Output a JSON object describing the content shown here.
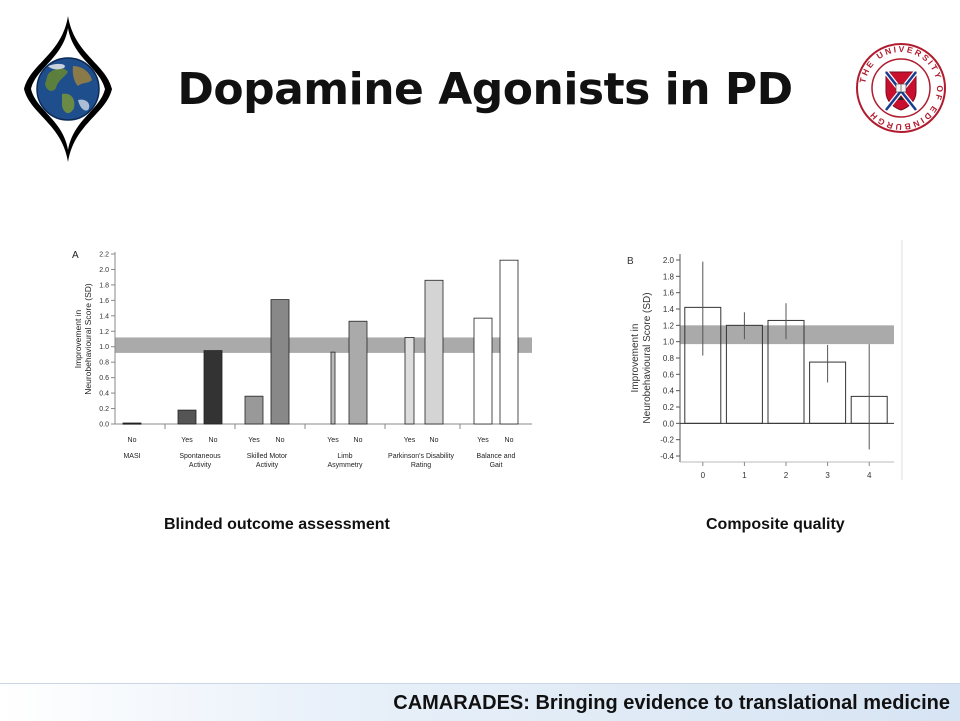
{
  "slide": {
    "title": "Dopamine Agonists in PD",
    "footer": "CAMARADES: Bringing evidence to translational medicine",
    "logo_right_text": "THE UNIVERSITY OF EDINBURGH"
  },
  "chart_data": [
    {
      "type": "bar",
      "panel_label": "A",
      "caption": "Blinded outcome assessment",
      "ylabel_lines": [
        "Improvement in",
        "Neurobehavioural Score (SD)"
      ],
      "ylim": [
        0,
        2.2
      ],
      "yticks": [
        "0.0",
        "0.2",
        "0.4",
        "0.6",
        "0.8",
        "1.0",
        "1.2",
        "1.4",
        "1.6",
        "1.8",
        "2.0",
        "2.2"
      ],
      "band": [
        0.92,
        1.12
      ],
      "groups": [
        {
          "label_lines": [
            "MASI"
          ],
          "bars": [
            {
              "sub": "No",
              "value": 0.0,
              "fill": "#222222"
            }
          ]
        },
        {
          "label_lines": [
            "Spontaneous",
            "Activity"
          ],
          "bars": [
            {
              "sub": "Yes",
              "value": 0.18,
              "fill": "#555555"
            },
            {
              "sub": "No",
              "value": 0.95,
              "fill": "#333333"
            }
          ]
        },
        {
          "label_lines": [
            "Skilled Motor",
            "Activity"
          ],
          "bars": [
            {
              "sub": "Yes",
              "value": 0.36,
              "fill": "#999999"
            },
            {
              "sub": "No",
              "value": 1.61,
              "fill": "#888888"
            }
          ]
        },
        {
          "label_lines": [
            "Limb",
            "Asymmetry"
          ],
          "bars": [
            {
              "sub": "Yes",
              "value": 0.93,
              "fill": "#bbbbbb"
            },
            {
              "sub": "No",
              "value": 1.33,
              "fill": "#aaaaaa"
            }
          ]
        },
        {
          "label_lines": [
            "Parkinson's Disability",
            "Rating"
          ],
          "bars": [
            {
              "sub": "Yes",
              "value": 1.12,
              "fill": "#dddddd"
            },
            {
              "sub": "No",
              "value": 1.86,
              "fill": "#d4d4d4"
            }
          ]
        },
        {
          "label_lines": [
            "Balance and",
            "Gait"
          ],
          "bars": [
            {
              "sub": "Yes",
              "value": 1.37,
              "fill": "#ffffff"
            },
            {
              "sub": "No",
              "value": 2.12,
              "fill": "#ffffff"
            }
          ]
        }
      ]
    },
    {
      "type": "bar",
      "panel_label": "B",
      "caption": "Composite quality",
      "ylabel_lines": [
        "Improvement in",
        "Neurobehavioural Score (SD)"
      ],
      "ylim": [
        -0.4,
        2.0
      ],
      "yticks": [
        "-0.4",
        "-0.2",
        "0.0",
        "0.2",
        "0.4",
        "0.6",
        "0.8",
        "1.0",
        "1.2",
        "1.4",
        "1.6",
        "1.8",
        "2.0"
      ],
      "band": [
        0.97,
        1.2
      ],
      "categories": [
        "0",
        "1",
        "2",
        "3",
        "4"
      ],
      "values": [
        1.42,
        1.2,
        1.26,
        0.75,
        0.33
      ],
      "error_low": [
        0.83,
        1.03,
        1.03,
        0.5,
        -0.32
      ],
      "error_high": [
        1.98,
        1.36,
        1.47,
        0.96,
        0.97
      ]
    }
  ]
}
